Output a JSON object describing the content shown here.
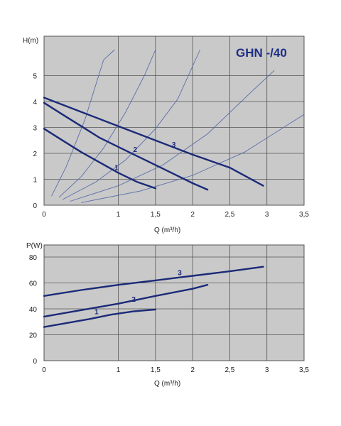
{
  "colors": {
    "plot_bg": "#c9c9c9",
    "grid": "#555555",
    "curve": "#1b2a78",
    "system_curve": "#5a6fa8",
    "title": "#1f2f86"
  },
  "chart_data": [
    {
      "type": "line",
      "title": "GHN -/40",
      "xlabel": "Q (m³/h)",
      "ylabel": "H(m)",
      "xlim": [
        0,
        3.5
      ],
      "ylim": [
        0,
        6
      ],
      "x_ticks": [
        "0",
        "1",
        "1,5",
        "2",
        "2,5",
        "3",
        "3,5"
      ],
      "y_ticks": [
        "0",
        "1",
        "2",
        "3",
        "4",
        "5"
      ],
      "grid": true,
      "series": [
        {
          "name": "1",
          "x": [
            0,
            0.25,
            0.5,
            0.75,
            1.0,
            1.25,
            1.5
          ],
          "y": [
            2.95,
            2.5,
            2.05,
            1.65,
            1.25,
            0.9,
            0.65
          ]
        },
        {
          "name": "2",
          "x": [
            0,
            0.25,
            0.5,
            0.75,
            1.0,
            1.25,
            1.5,
            1.75,
            2.0,
            2.2
          ],
          "y": [
            3.95,
            3.5,
            3.05,
            2.6,
            2.25,
            1.9,
            1.55,
            1.2,
            0.85,
            0.6
          ]
        },
        {
          "name": "3",
          "x": [
            0,
            0.5,
            1.0,
            1.5,
            2.0,
            2.5,
            2.95
          ],
          "y": [
            4.15,
            3.6,
            3.05,
            2.5,
            1.95,
            1.45,
            0.75
          ]
        }
      ],
      "system_curves": [
        {
          "x": [
            0.1,
            0.3,
            0.55,
            0.8,
            0.95
          ],
          "y": [
            0.35,
            1.5,
            3.3,
            5.6,
            6.0
          ]
        },
        {
          "x": [
            0.2,
            0.5,
            0.8,
            1.1,
            1.35,
            1.5
          ],
          "y": [
            0.3,
            1.1,
            2.2,
            3.6,
            5.0,
            6.0
          ]
        },
        {
          "x": [
            0.25,
            0.7,
            1.1,
            1.5,
            1.8,
            2.1
          ],
          "y": [
            0.22,
            0.9,
            1.75,
            2.95,
            4.1,
            6.0
          ]
        },
        {
          "x": [
            0.35,
            1.0,
            1.6,
            2.2,
            2.8,
            3.1
          ],
          "y": [
            0.15,
            0.75,
            1.55,
            2.75,
            4.4,
            5.2
          ]
        },
        {
          "x": [
            0.5,
            1.3,
            2.0,
            2.7,
            3.5
          ],
          "y": [
            0.1,
            0.55,
            1.15,
            2.05,
            3.5
          ]
        }
      ]
    },
    {
      "type": "line",
      "title": "",
      "xlabel": "Q (m³/h)",
      "ylabel": "P(W)",
      "xlim": [
        0,
        3.5
      ],
      "ylim": [
        0,
        90
      ],
      "x_ticks": [
        "0",
        "1",
        "1,5",
        "2",
        "2,5",
        "3",
        "3,5"
      ],
      "y_ticks": [
        "0",
        "20",
        "40",
        "60",
        "80"
      ],
      "grid": true,
      "series": [
        {
          "name": "1",
          "x": [
            0,
            0.3,
            0.6,
            0.9,
            1.2,
            1.5
          ],
          "y": [
            26,
            29,
            32,
            35.5,
            38,
            39.5
          ]
        },
        {
          "name": "2",
          "x": [
            0,
            0.5,
            1.0,
            1.5,
            2.0,
            2.2
          ],
          "y": [
            34,
            39,
            44,
            50,
            55.5,
            58.5
          ]
        },
        {
          "name": "3",
          "x": [
            0,
            0.5,
            1.0,
            1.5,
            2.0,
            2.5,
            2.95
          ],
          "y": [
            50,
            54.5,
            58.5,
            62,
            65.5,
            69,
            72.5
          ]
        }
      ]
    }
  ]
}
